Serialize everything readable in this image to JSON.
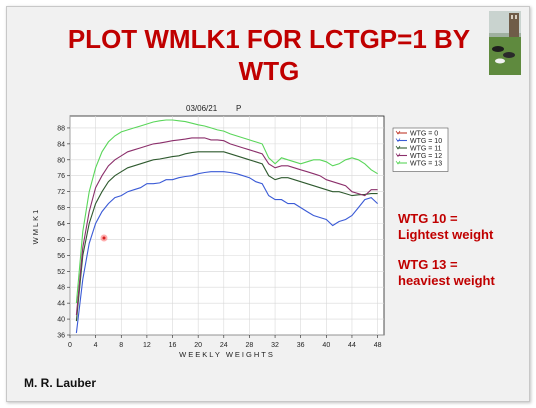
{
  "title": "PLOT WMLK1 FOR LCTGP=1 BY WTG",
  "plot_date": "03/06/21",
  "plot_tag": "P",
  "author": "M. R. Lauber",
  "annotations": {
    "wtg10_line1": "WTG 10 =",
    "wtg10_line2": "Lightest weight",
    "wtg13_line1": "WTG 13 =",
    "wtg13_line2": "heaviest weight"
  },
  "chart_data": {
    "type": "line",
    "title": "",
    "xlabel": "WEEKLY WEIGHTS",
    "ylabel": "WMLK1",
    "xlim": [
      0,
      49
    ],
    "ylim": [
      36,
      91
    ],
    "x_ticks": [
      0,
      4,
      8,
      12,
      16,
      20,
      24,
      28,
      32,
      36,
      40,
      44,
      48
    ],
    "y_ticks": [
      36,
      40,
      44,
      48,
      52,
      56,
      60,
      64,
      68,
      72,
      76,
      80,
      84,
      88
    ],
    "grid": true,
    "legend_position": "right",
    "x": [
      1,
      2,
      3,
      4,
      5,
      6,
      7,
      8,
      9,
      10,
      11,
      12,
      13,
      14,
      15,
      16,
      17,
      18,
      19,
      20,
      21,
      22,
      23,
      24,
      25,
      26,
      27,
      28,
      29,
      30,
      31,
      32,
      33,
      34,
      35,
      36,
      37,
      38,
      39,
      40,
      41,
      42,
      43,
      44,
      45,
      46,
      47,
      48
    ],
    "series": [
      {
        "name": "WTG = 0",
        "color": "#c0392b",
        "values": [
          null,
          null,
          null,
          null,
          null,
          null,
          null,
          null,
          null,
          null,
          null,
          null,
          null,
          null,
          null,
          null,
          null,
          null,
          null,
          null,
          null,
          null,
          null,
          null,
          null,
          null,
          null,
          null,
          null,
          null,
          null,
          null,
          null,
          null,
          null,
          null,
          null,
          null,
          null,
          null,
          null,
          null,
          null,
          null,
          null,
          null,
          null,
          null
        ]
      },
      {
        "name": "WTG = 10",
        "color": "#3b5bd6",
        "values": [
          36.5,
          50,
          59,
          64,
          67,
          69,
          70.5,
          71,
          72,
          72.5,
          73,
          74,
          74,
          74.2,
          75,
          75,
          75.5,
          75.8,
          76,
          76.5,
          76.8,
          77,
          77,
          77,
          76.8,
          76.5,
          76,
          75.5,
          74.5,
          74,
          71,
          70,
          70,
          69,
          69,
          68,
          67,
          66,
          65.5,
          65,
          63.5,
          64.5,
          65,
          66,
          68,
          70,
          70.5,
          69
        ]
      },
      {
        "name": "WTG = 11",
        "color": "#2f5a2f",
        "values": [
          39.5,
          56,
          64,
          69,
          72,
          74.5,
          76,
          77,
          78,
          78.5,
          79,
          79.5,
          80,
          80.2,
          80.5,
          80.8,
          81,
          81.5,
          81.8,
          82,
          82,
          82,
          82,
          82,
          81.5,
          81,
          80.5,
          80,
          79.5,
          79,
          76,
          75,
          75.5,
          75.5,
          75,
          74.5,
          74,
          73.5,
          73,
          72.5,
          72,
          72,
          71.5,
          71,
          71.2,
          71.3,
          71.5,
          71.5
        ]
      },
      {
        "name": "WTG = 12",
        "color": "#8b2f6b",
        "values": [
          41,
          58,
          67,
          73,
          76,
          78.5,
          80,
          81,
          82,
          82.5,
          83,
          83.5,
          84,
          84.2,
          84.5,
          84.8,
          85,
          85.2,
          85.5,
          85.5,
          85.5,
          85,
          85,
          84.8,
          84,
          83.5,
          83,
          82.5,
          82,
          81.5,
          79,
          78,
          78.5,
          78.5,
          78,
          77.5,
          77,
          76.5,
          76,
          75,
          74.5,
          74,
          73.5,
          72,
          71.5,
          71,
          72.5,
          72.5
        ]
      },
      {
        "name": "WTG = 13",
        "color": "#5ad65a",
        "values": [
          44,
          62,
          72,
          78,
          82,
          84.5,
          86,
          87,
          87.5,
          88,
          88.5,
          89,
          89.5,
          89.8,
          90,
          90,
          89.8,
          89.6,
          89.2,
          88.8,
          88.5,
          88,
          87.5,
          87.2,
          86.5,
          86,
          85.5,
          85,
          84.5,
          84,
          80.5,
          79,
          80.5,
          80,
          79.5,
          79,
          79.5,
          80,
          80,
          79.5,
          78.5,
          79,
          80,
          80.5,
          80,
          79,
          77.5,
          76.5
        ]
      }
    ]
  }
}
